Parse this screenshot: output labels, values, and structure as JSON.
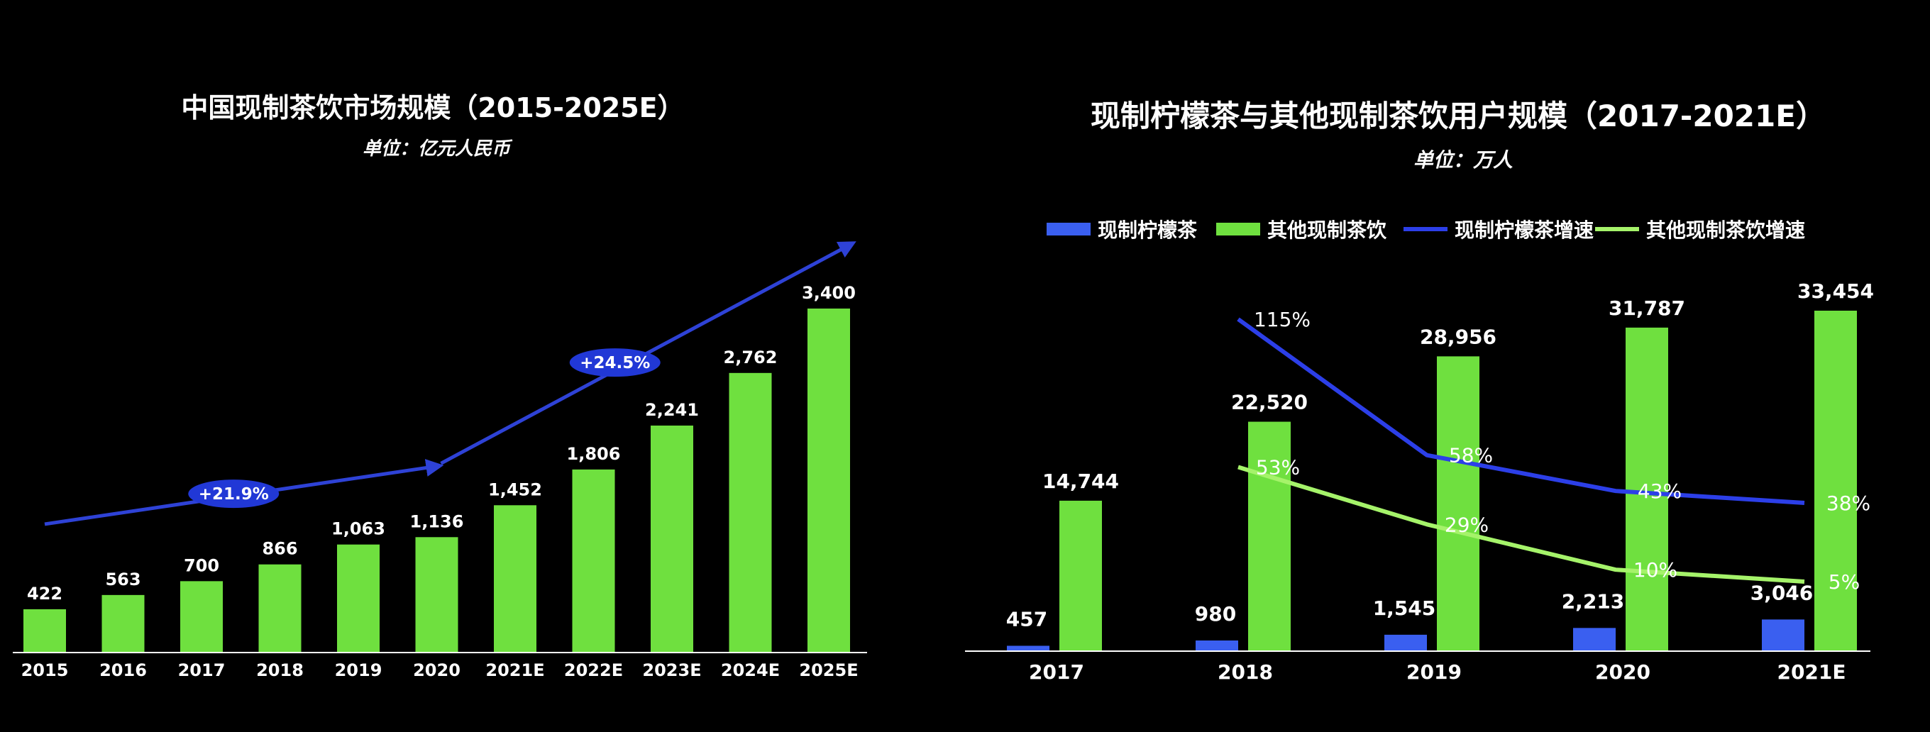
{
  "colors": {
    "background": "#000000",
    "bar_green": "#6FE03F",
    "bar_blue": "#3A5FF0",
    "line_blue": "#2C3FE8",
    "line_green": "#A5F36A",
    "arrow_blue": "#2E42D6",
    "badge_blue": "#2138D6",
    "axis": "#ffffff"
  },
  "chart_data": [
    {
      "type": "bar",
      "title": "中国现制茶饮市场规模（2015-2025E）",
      "subtitle": "单位：亿元人民币",
      "categories": [
        "2015",
        "2016",
        "2017",
        "2018",
        "2019",
        "2020",
        "2021E",
        "2022E",
        "2023E",
        "2024E",
        "2025E"
      ],
      "values": [
        422,
        563,
        700,
        866,
        1063,
        1136,
        1452,
        1806,
        2241,
        2762,
        3400
      ],
      "value_labels": [
        "422",
        "563",
        "700",
        "866",
        "1,063",
        "1,136",
        "1,452",
        "1,806",
        "2,241",
        "2,762",
        "3,400"
      ],
      "ylim": [
        0,
        3400
      ],
      "grid": false,
      "annotations": [
        {
          "text": "+21.9%",
          "from": "2015",
          "to": "2020"
        },
        {
          "text": "+24.5%",
          "from": "2020",
          "to": "2025E"
        }
      ]
    },
    {
      "type": "bar+line",
      "title": "现制柠檬茶与其他现制茶饮用户规模（2017-2021E）",
      "subtitle": "单位：万人",
      "categories": [
        "2017",
        "2018",
        "2019",
        "2020",
        "2021E"
      ],
      "legend_position": "top",
      "series": [
        {
          "name": "现制柠檬茶",
          "kind": "bar",
          "values": [
            457,
            980,
            1545,
            2213,
            3046
          ],
          "labels": [
            "457",
            "980",
            "1,545",
            "2,213",
            "3,046"
          ]
        },
        {
          "name": "其他现制茶饮",
          "kind": "bar",
          "values": [
            14744,
            22520,
            28956,
            31787,
            33454
          ],
          "labels": [
            "14,744",
            "22,520",
            "28,956",
            "31,787",
            "33,454"
          ]
        },
        {
          "name": "现制柠檬茶增速",
          "kind": "line",
          "x": [
            "2018",
            "2019",
            "2020",
            "2021E"
          ],
          "values": [
            115,
            58,
            43,
            38
          ],
          "labels": [
            "115%",
            "58%",
            "43%",
            "38%"
          ]
        },
        {
          "name": "其他现制茶饮增速",
          "kind": "line",
          "x": [
            "2018",
            "2019",
            "2020",
            "2021E"
          ],
          "values": [
            53,
            29,
            10,
            5
          ],
          "labels": [
            "53%",
            "29%",
            "10%",
            "5%"
          ]
        }
      ],
      "ylim": [
        0,
        33454
      ],
      "grid": false
    }
  ]
}
